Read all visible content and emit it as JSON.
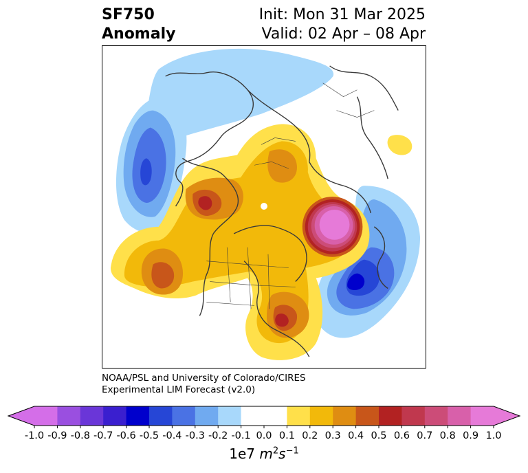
{
  "header": {
    "variable": "SF750",
    "kind": "Anomaly",
    "init": "Init: Mon 31 Mar 2025",
    "valid": "Valid: 02 Apr – 08 Apr"
  },
  "credit": {
    "line1": "NOAA/PSL and University of Colorado/CIRES",
    "line2": "Experimental LIM Forecast (v2.0)"
  },
  "colorbar": {
    "colors": [
      "#d46ee8",
      "#9a4fe0",
      "#6a36d8",
      "#3a1fcf",
      "#0000cc",
      "#2646d6",
      "#4a72e4",
      "#70aaf0",
      "#a8d8fb",
      "#ffffff",
      "#ffffff",
      "#ffe04a",
      "#f2b90a",
      "#df8d12",
      "#c8561a",
      "#b22222",
      "#c0384e",
      "#cc4c78",
      "#d860aa",
      "#e67ad8"
    ],
    "ticks": [
      "-1.0",
      "-0.9",
      "-0.8",
      "-0.7",
      "-0.6",
      "-0.5",
      "-0.4",
      "-0.3",
      "-0.2",
      "-0.1",
      "0.0",
      "0.1",
      "0.2",
      "0.3",
      "0.4",
      "0.5",
      "0.6",
      "0.7",
      "0.8",
      "0.9",
      "1.0"
    ],
    "units_prefix": "1e7 ",
    "units_m": "m",
    "units_m_exp": "2",
    "units_s": "s",
    "units_s_exp": "−1",
    "neg_extend_color": "#d46ee8",
    "pos_extend_color": "#e67ad8"
  },
  "map": {
    "projection": "north-polar-stereographic",
    "colors": {
      "blue_light": "#a8d8fb",
      "blue_mid": "#70aaf0",
      "blue_medium": "#4a72e4",
      "blue_dark": "#2646d6",
      "blue_deep": "#0000cc",
      "yellow": "#ffe04a",
      "gold": "#f2b90a",
      "orange": "#df8d12",
      "dark_orange": "#c8561a",
      "red": "#b22222",
      "crimson": "#c0384e",
      "pink_red": "#cc4c78",
      "pink": "#d860aa",
      "magenta": "#e67ad8",
      "coast": "#3a3a3a"
    }
  }
}
